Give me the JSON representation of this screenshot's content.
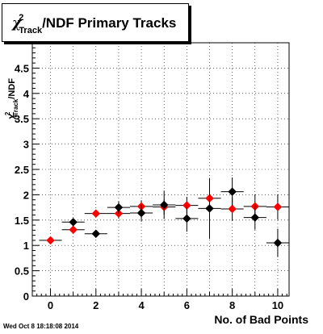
{
  "title_parts": {
    "symbol": "χ",
    "sup": "2",
    "sub": "Track",
    "rest": "/NDF Primary Tracks"
  },
  "xlabel": "No. of Bad Points",
  "ylabel_parts": {
    "symbol": "χ",
    "sup": "2",
    "sub": "Track",
    "rest": "/NDF"
  },
  "footer": "Wed Oct  8 18:18:08 2014",
  "chart_data": {
    "type": "scatter",
    "title": "χ2Track/NDF Primary Tracks",
    "xlabel": "No. of Bad Points",
    "ylabel": "χ2Track/NDF",
    "xlim": [
      -0.8,
      10.5
    ],
    "ylim": [
      0,
      5
    ],
    "xticks": [
      "0",
      "2",
      "4",
      "6",
      "8",
      "10"
    ],
    "yticks": [
      "0",
      "0.5",
      "1",
      "1.5",
      "2",
      "2.5",
      "3",
      "3.5",
      "4",
      "4.5"
    ],
    "grid": true,
    "series": [
      {
        "color": "#ff0000",
        "x": [
          0,
          1,
          2,
          3,
          4,
          5,
          6,
          7,
          8,
          9,
          10
        ],
        "y": [
          1.1,
          1.31,
          1.63,
          1.63,
          1.77,
          1.76,
          1.79,
          1.93,
          1.72,
          1.77,
          1.76
        ],
        "xerr": 0.5,
        "yerr": [
          0.02,
          0.04,
          0.06,
          0.1,
          0.12,
          0.15,
          0.17,
          0.2,
          0.23,
          0.24,
          0.25
        ]
      },
      {
        "color": "#000000",
        "x": [
          1,
          2,
          3,
          4,
          5,
          6,
          7,
          8,
          9,
          10
        ],
        "y": [
          1.46,
          1.23,
          1.75,
          1.64,
          1.8,
          1.53,
          1.73,
          2.06,
          1.55,
          1.05
        ],
        "xerr": 0.5,
        "yerr": [
          0.06,
          0.07,
          0.12,
          0.17,
          0.28,
          0.26,
          0.6,
          0.28,
          0.24,
          0.28
        ]
      }
    ]
  }
}
